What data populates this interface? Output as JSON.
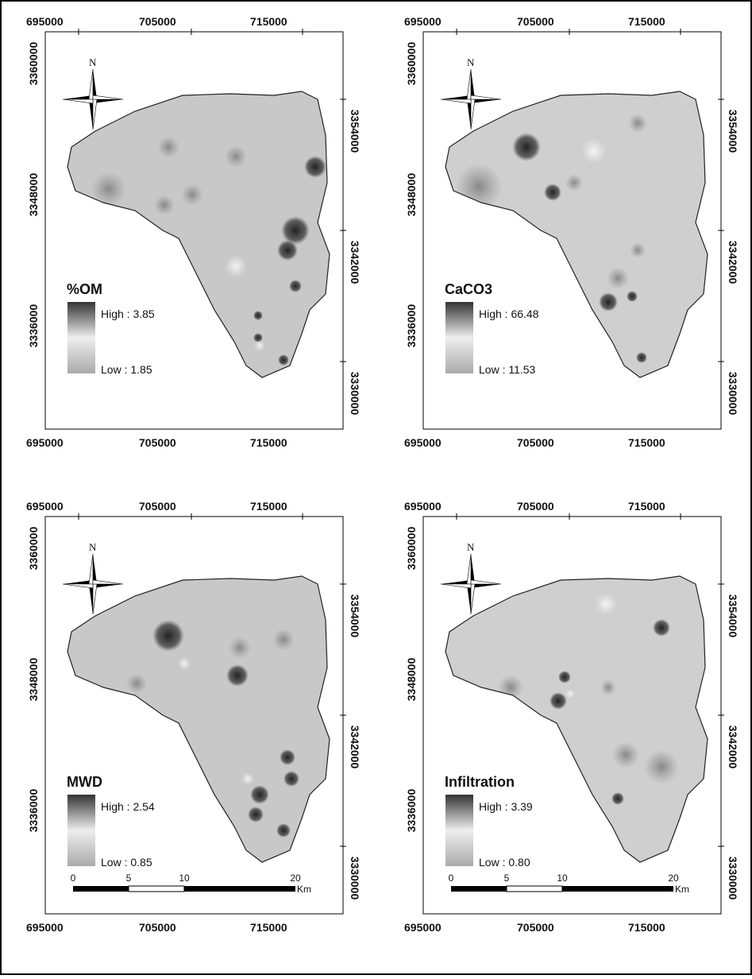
{
  "panels": [
    {
      "title": "%OM",
      "legend_high": "High : 3.85",
      "legend_low": "Low : 1.85",
      "north": "N",
      "x_ticks_top": [
        "695000",
        "705000",
        "715000"
      ],
      "x_ticks_bottom": [
        "695000",
        "705000",
        "715000"
      ],
      "y_ticks_left": [
        "3360000",
        "3348000",
        "3336000"
      ],
      "y_ticks_right": [
        "3354000",
        "3342000",
        "3330000"
      ]
    },
    {
      "title": "CaCO3",
      "legend_high": "High : 66.48",
      "legend_low": "Low : 11.53",
      "north": "N",
      "x_ticks_top": [
        "695000",
        "705000",
        "715000"
      ],
      "x_ticks_bottom": [
        "695000",
        "705000",
        "715000"
      ],
      "y_ticks_left": [
        "3360000",
        "3348000",
        "3336000"
      ],
      "y_ticks_right": [
        "3354000",
        "3342000",
        "3330000"
      ]
    },
    {
      "title": "MWD",
      "legend_high": "High : 2.54",
      "legend_low": "Low : 0.85",
      "north": "N",
      "x_ticks_top": [
        "695000",
        "705000",
        "715000"
      ],
      "x_ticks_bottom": [
        "695000",
        "705000",
        "715000"
      ],
      "y_ticks_left": [
        "3360000",
        "3348000",
        "3336000"
      ],
      "y_ticks_right": [
        "3354000",
        "3342000",
        "3330000"
      ],
      "scale_bar": {
        "ticks": [
          "0",
          "5",
          "10",
          "20"
        ],
        "unit": "Km"
      }
    },
    {
      "title": "Infiltration",
      "legend_high": "High : 3.39",
      "legend_low": "Low : 0.80",
      "north": "N",
      "x_ticks_top": [
        "695000",
        "705000",
        "715000"
      ],
      "x_ticks_bottom": [
        "695000",
        "705000",
        "715000"
      ],
      "y_ticks_left": [
        "3360000",
        "3348000",
        "3336000"
      ],
      "y_ticks_right": [
        "3354000",
        "3342000",
        "3330000"
      ],
      "scale_bar": {
        "ticks": [
          "0",
          "5",
          "10",
          "20"
        ],
        "unit": "Km"
      }
    }
  ]
}
